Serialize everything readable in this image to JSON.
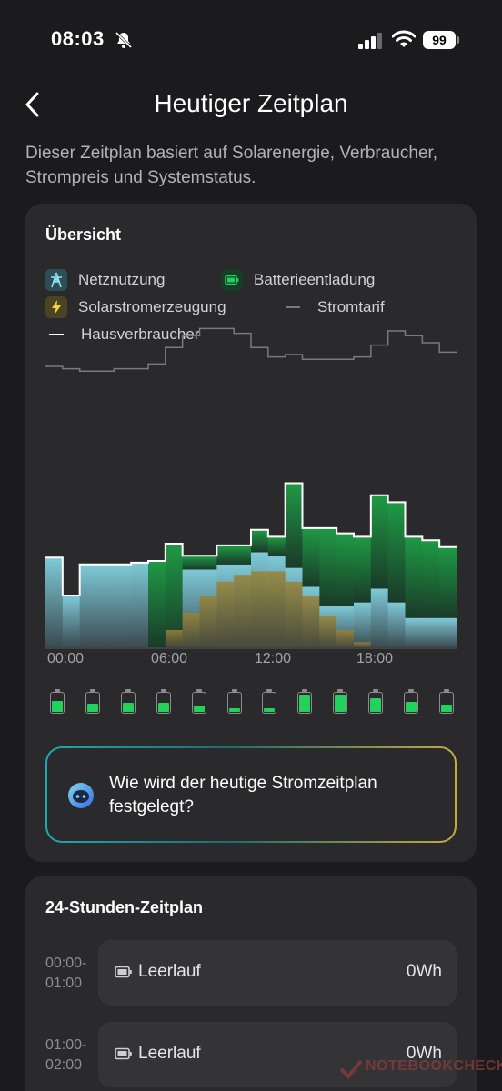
{
  "status_bar": {
    "time": "08:03",
    "battery": "99"
  },
  "header": {
    "title": "Heutiger Zeitplan"
  },
  "description": "Dieser Zeitplan basiert auf Solarenergie, Verbraucher, Strompreis und Systemstatus.",
  "overview": {
    "title": "Übersicht",
    "legend": [
      {
        "label": "Netznutzung",
        "icon": "tower-icon",
        "color": "#7fd0e0"
      },
      {
        "label": "Batterieentladung",
        "icon": "battery-icon",
        "color": "#1fcf5c"
      },
      {
        "label": "Solarstromerzeugung",
        "icon": "bolt-icon",
        "color": "#f0d040"
      },
      {
        "label": "Stromtarif",
        "icon": "line",
        "color": "#7a7a7e"
      },
      {
        "label": "Hausverbraucher",
        "icon": "line",
        "color": "#ffffff"
      }
    ],
    "time_labels": [
      "00:00",
      "06:00",
      "12:00",
      "18:00"
    ],
    "question": "Wie wird der heutige Stromzeitplan festgelegt?"
  },
  "chart_data": {
    "type": "area",
    "x_unit": "hour",
    "hours": [
      0,
      1,
      2,
      3,
      4,
      5,
      6,
      7,
      8,
      9,
      10,
      11,
      12,
      13,
      14,
      15,
      16,
      17,
      18,
      19,
      20,
      21,
      22,
      23
    ],
    "series": [
      {
        "name": "Hausverbraucher",
        "values": [
          52,
          30,
          48,
          48,
          48,
          49,
          50,
          60,
          53,
          53,
          59,
          59,
          68,
          64,
          95,
          69,
          69,
          66,
          64,
          88,
          84,
          64,
          62,
          58
        ]
      },
      {
        "name": "Netznutzung",
        "values": [
          52,
          30,
          48,
          48,
          48,
          49,
          0,
          0,
          45,
          45,
          48,
          48,
          55,
          53,
          46,
          35,
          24,
          24,
          26,
          34,
          26,
          17,
          17,
          17
        ]
      },
      {
        "name": "Batterieentladung",
        "values": [
          0,
          0,
          0,
          0,
          0,
          0,
          50,
          60,
          8,
          8,
          11,
          11,
          13,
          11,
          49,
          34,
          45,
          42,
          38,
          54,
          58,
          47,
          45,
          41
        ]
      },
      {
        "name": "Solarstromerzeugung",
        "values": [
          0,
          0,
          0,
          0,
          0,
          0,
          0,
          10,
          20,
          30,
          38,
          42,
          44,
          44,
          38,
          30,
          18,
          10,
          3,
          0,
          0,
          0,
          0,
          0
        ]
      },
      {
        "name": "Stromtarif",
        "values": [
          20,
          19,
          18,
          18,
          19,
          19,
          21,
          28,
          33,
          36,
          36,
          34,
          28,
          24,
          25,
          23,
          23,
          23,
          24,
          29,
          35,
          33,
          30,
          26
        ]
      }
    ],
    "battery_levels": [
      0.55,
      0.4,
      0.45,
      0.45,
      0.3,
      0.2,
      0.2,
      0.85,
      0.85,
      0.7,
      0.5,
      0.35
    ]
  },
  "schedule": {
    "title": "24-Stunden-Zeitplan",
    "slots": [
      {
        "time_start": "00:00-",
        "time_end": "01:00",
        "label": "Leerlauf",
        "value": "0Wh"
      },
      {
        "time_start": "01:00-",
        "time_end": "02:00",
        "label": "Leerlauf",
        "value": "0Wh"
      }
    ]
  },
  "watermark": "NOTEBOOKCHECK"
}
